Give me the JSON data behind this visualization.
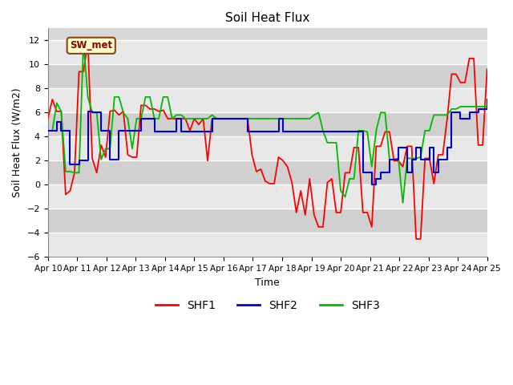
{
  "title": "Soil Heat Flux",
  "ylabel": "Soil Heat Flux (W/m2)",
  "xlabel": "Time",
  "annotation_text": "SW_met",
  "ylim": [
    -6,
    13
  ],
  "yticks": [
    -6,
    -4,
    -2,
    0,
    2,
    4,
    6,
    8,
    10,
    12
  ],
  "series_colors": {
    "SHF1": "#ff0000",
    "SHF2": "#0000cc",
    "SHF3": "#00bb00"
  },
  "background_color": "#ffffff",
  "plot_bg_color": "#d8d8d8",
  "band_color_light": "#e8e8e8",
  "band_color_dark": "#d0d0d0",
  "grid_color": "#ffffff",
  "x_labels": [
    "Apr 10",
    "Apr 11",
    "Apr 12",
    "Apr 13",
    "Apr 14",
    "Apr 15",
    "Apr 16",
    "Apr 17",
    "Apr 18",
    "Apr 19",
    "Apr 20",
    "Apr 21",
    "Apr 22",
    "Apr 23",
    "Apr 24",
    "Apr 25"
  ],
  "shf1": [
    5.5,
    7.1,
    6.1,
    6.1,
    -0.8,
    -0.5,
    1.0,
    9.4,
    9.4,
    11.8,
    2.2,
    1.0,
    3.3,
    2.3,
    6.1,
    6.2,
    5.8,
    6.1,
    2.5,
    2.3,
    2.3,
    6.6,
    6.6,
    6.3,
    6.3,
    6.1,
    6.2,
    5.5,
    5.5,
    5.5,
    5.5,
    5.5,
    4.5,
    5.5,
    5.0,
    5.5,
    2.0,
    5.5,
    5.5,
    5.5,
    5.5,
    5.5,
    5.5,
    5.5,
    5.5,
    5.5,
    2.5,
    1.1,
    1.3,
    0.3,
    0.1,
    0.1,
    2.3,
    2.0,
    1.5,
    0.2,
    -2.3,
    -0.5,
    -2.5,
    0.5,
    -2.5,
    -3.5,
    -3.5,
    0.2,
    0.5,
    -2.3,
    -2.3,
    1.0,
    1.0,
    3.1,
    3.1,
    -2.3,
    -2.3,
    -3.5,
    3.2,
    3.2,
    4.4,
    4.4,
    2.0,
    2.0,
    1.5,
    3.2,
    3.2,
    -4.5,
    -4.5,
    2.2,
    2.2,
    0.1,
    2.5,
    2.5,
    5.5,
    9.2,
    9.2,
    8.5,
    8.5,
    10.5,
    10.5,
    3.3,
    3.3,
    9.6
  ],
  "shf2": [
    4.5,
    4.5,
    5.2,
    4.5,
    4.5,
    1.7,
    1.7,
    2.0,
    2.0,
    6.1,
    6.0,
    6.0,
    4.5,
    4.5,
    2.1,
    2.1,
    4.5,
    4.5,
    4.5,
    4.5,
    4.5,
    5.5,
    5.5,
    5.5,
    4.4,
    4.4,
    4.4,
    4.4,
    4.4,
    5.5,
    4.4,
    4.4,
    4.4,
    4.4,
    4.4,
    4.4,
    4.4,
    5.5,
    5.5,
    5.5,
    5.5,
    5.5,
    5.5,
    5.5,
    5.5,
    4.4,
    4.4,
    4.4,
    4.4,
    4.4,
    4.4,
    4.4,
    5.5,
    4.4,
    4.4,
    4.4,
    4.4,
    4.4,
    4.4,
    4.4,
    4.4,
    4.4,
    4.4,
    4.4,
    4.4,
    4.4,
    4.4,
    4.4,
    4.4,
    4.4,
    4.4,
    1.0,
    1.0,
    0.0,
    0.5,
    1.0,
    1.0,
    2.1,
    2.1,
    3.1,
    3.1,
    1.0,
    2.1,
    3.1,
    2.1,
    2.1,
    3.1,
    1.0,
    2.1,
    2.1,
    3.1,
    6.0,
    6.0,
    5.5,
    5.5,
    6.0,
    6.0,
    6.3,
    6.3,
    7.1
  ],
  "shf3": [
    4.5,
    4.5,
    6.8,
    6.1,
    1.1,
    1.1,
    1.0,
    1.0,
    11.8,
    7.3,
    6.0,
    6.0,
    2.1,
    3.0,
    3.0,
    7.3,
    7.3,
    6.0,
    5.5,
    3.0,
    5.5,
    5.5,
    7.3,
    7.3,
    5.5,
    5.5,
    7.3,
    7.3,
    5.5,
    5.8,
    5.8,
    5.5,
    5.5,
    5.5,
    5.5,
    5.5,
    5.5,
    5.8,
    5.5,
    5.5,
    5.5,
    5.5,
    5.5,
    5.5,
    5.5,
    5.5,
    5.5,
    5.5,
    5.5,
    5.5,
    5.5,
    5.5,
    5.5,
    5.5,
    5.5,
    5.5,
    5.5,
    5.5,
    5.5,
    5.5,
    5.8,
    6.0,
    4.5,
    3.5,
    3.5,
    3.5,
    -0.5,
    -1.0,
    0.5,
    0.5,
    4.5,
    4.5,
    4.4,
    1.5,
    4.5,
    6.0,
    6.0,
    2.1,
    2.1,
    2.2,
    -1.5,
    2.2,
    2.2,
    2.2,
    2.3,
    4.5,
    4.5,
    5.8,
    5.8,
    5.8,
    5.8,
    6.3,
    6.3,
    6.5,
    6.5,
    6.5,
    6.5,
    6.5,
    6.5,
    6.5
  ]
}
